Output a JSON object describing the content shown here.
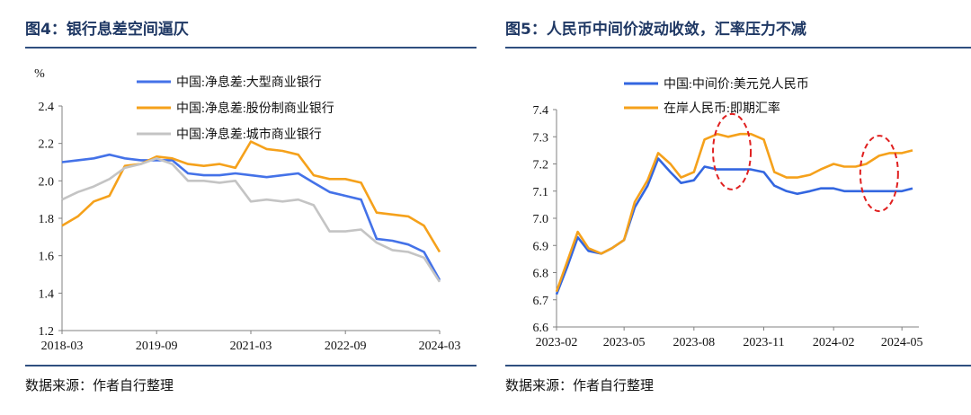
{
  "left_panel": {
    "title": "图4：银行息差空间逼仄",
    "source": "数据来源：作者自行整理"
  },
  "right_panel": {
    "title": "图5：人民币中间价波动收敛，汇率压力不减",
    "source": "数据来源：作者自行整理"
  },
  "chart_data": [
    {
      "type": "line",
      "title": "",
      "ylabel": "%",
      "xlabel": "",
      "ylim": [
        1.2,
        2.4
      ],
      "yticks": [
        "1.2",
        "1.4",
        "1.6",
        "1.8",
        "2.0",
        "2.2",
        "2.4"
      ],
      "xticks": [
        "2018-03",
        "2019-09",
        "2021-03",
        "2022-09",
        "2024-03"
      ],
      "x": [
        "2018-03",
        "2018-06",
        "2018-09",
        "2018-12",
        "2019-03",
        "2019-06",
        "2019-09",
        "2019-12",
        "2020-03",
        "2020-06",
        "2020-09",
        "2020-12",
        "2021-03",
        "2021-06",
        "2021-09",
        "2021-12",
        "2022-03",
        "2022-06",
        "2022-09",
        "2022-12",
        "2023-03",
        "2023-06",
        "2023-09",
        "2023-12",
        "2024-03"
      ],
      "legend_position": "top-center",
      "grid": false,
      "series": [
        {
          "name": "中国:净息差:大型商业银行",
          "color": "#4472e8",
          "values": [
            2.1,
            2.11,
            2.12,
            2.14,
            2.12,
            2.11,
            2.11,
            2.11,
            2.04,
            2.03,
            2.03,
            2.04,
            2.03,
            2.02,
            2.03,
            2.04,
            1.99,
            1.94,
            1.92,
            1.9,
            1.69,
            1.68,
            1.66,
            1.62,
            1.47
          ]
        },
        {
          "name": "中国:净息差:股份制商业银行",
          "color": "#f5a11b",
          "values": [
            1.76,
            1.81,
            1.89,
            1.92,
            2.08,
            2.09,
            2.13,
            2.12,
            2.09,
            2.08,
            2.09,
            2.07,
            2.21,
            2.17,
            2.16,
            2.14,
            2.03,
            2.01,
            2.01,
            1.99,
            1.83,
            1.82,
            1.81,
            1.76,
            1.62
          ]
        },
        {
          "name": "中国:净息差:城市商业银行",
          "color": "#c4c4c4",
          "values": [
            1.9,
            1.94,
            1.97,
            2.01,
            2.07,
            2.09,
            2.12,
            2.09,
            2.0,
            2.0,
            1.99,
            2.0,
            1.89,
            1.9,
            1.89,
            1.9,
            1.87,
            1.73,
            1.73,
            1.74,
            1.67,
            1.63,
            1.62,
            1.59,
            1.46
          ]
        }
      ]
    },
    {
      "type": "line",
      "title": "",
      "xlabel": "",
      "ylabel": "",
      "ylim": [
        6.6,
        7.4
      ],
      "yticks": [
        "6.6",
        "6.7",
        "6.8",
        "6.9",
        "7.0",
        "7.1",
        "7.2",
        "7.3",
        "7.4"
      ],
      "xticks": [
        "2023-02",
        "2023-05",
        "2023-08",
        "2023-11",
        "2024-02",
        "2024-05"
      ],
      "x": [
        "2023-02-01",
        "2023-02-15",
        "2023-03-01",
        "2023-03-15",
        "2023-04-01",
        "2023-04-15",
        "2023-05-01",
        "2023-05-15",
        "2023-06-01",
        "2023-06-15",
        "2023-07-01",
        "2023-07-15",
        "2023-08-01",
        "2023-08-15",
        "2023-09-01",
        "2023-09-15",
        "2023-10-01",
        "2023-10-15",
        "2023-11-01",
        "2023-11-15",
        "2023-12-01",
        "2023-12-15",
        "2024-01-01",
        "2024-01-15",
        "2024-02-01",
        "2024-02-15",
        "2024-03-01",
        "2024-03-15",
        "2024-04-01",
        "2024-04-15",
        "2024-05-01",
        "2024-05-15"
      ],
      "legend_position": "top-center",
      "grid": false,
      "series": [
        {
          "name": "中国:中间价:美元兑人民币",
          "color": "#3366e0",
          "values": [
            6.72,
            6.82,
            6.93,
            6.88,
            6.87,
            6.89,
            6.92,
            7.04,
            7.12,
            7.22,
            7.17,
            7.13,
            7.14,
            7.19,
            7.18,
            7.18,
            7.18,
            7.18,
            7.17,
            7.12,
            7.1,
            7.09,
            7.1,
            7.11,
            7.11,
            7.1,
            7.1,
            7.1,
            7.1,
            7.1,
            7.1,
            7.11
          ]
        },
        {
          "name": "在岸人民币:即期汇率",
          "color": "#f5a11b",
          "values": [
            6.73,
            6.84,
            6.95,
            6.89,
            6.87,
            6.89,
            6.92,
            7.06,
            7.14,
            7.24,
            7.2,
            7.15,
            7.17,
            7.29,
            7.31,
            7.3,
            7.31,
            7.31,
            7.29,
            7.17,
            7.15,
            7.15,
            7.16,
            7.18,
            7.2,
            7.19,
            7.19,
            7.2,
            7.23,
            7.24,
            7.24,
            7.25
          ]
        }
      ],
      "annotations": [
        {
          "type": "dashed-ellipse",
          "color": "#e02020",
          "x_center": "2023-09-20",
          "y_center": 7.245
        },
        {
          "type": "dashed-ellipse",
          "color": "#e02020",
          "x_center": "2024-04-01",
          "y_center": 7.165
        }
      ]
    }
  ]
}
